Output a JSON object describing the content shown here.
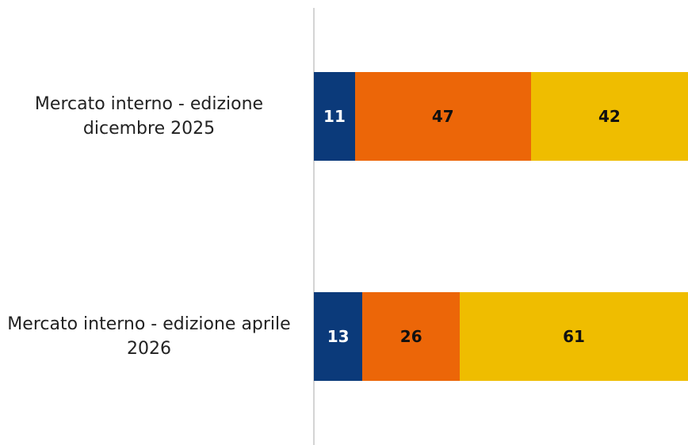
{
  "chart_data": {
    "type": "stacked-bar-horizontal",
    "categories": [
      "Mercato interno - edizione dicembre 2025",
      "Mercato interno - edizione aprile 2026"
    ],
    "series": [
      {
        "color": "#0b3a7a",
        "values": [
          11,
          13
        ]
      },
      {
        "color": "#ec6608",
        "values": [
          47,
          26
        ]
      },
      {
        "color": "#efbd00",
        "values": [
          42,
          61
        ]
      }
    ],
    "xlim": [
      0,
      100
    ]
  }
}
